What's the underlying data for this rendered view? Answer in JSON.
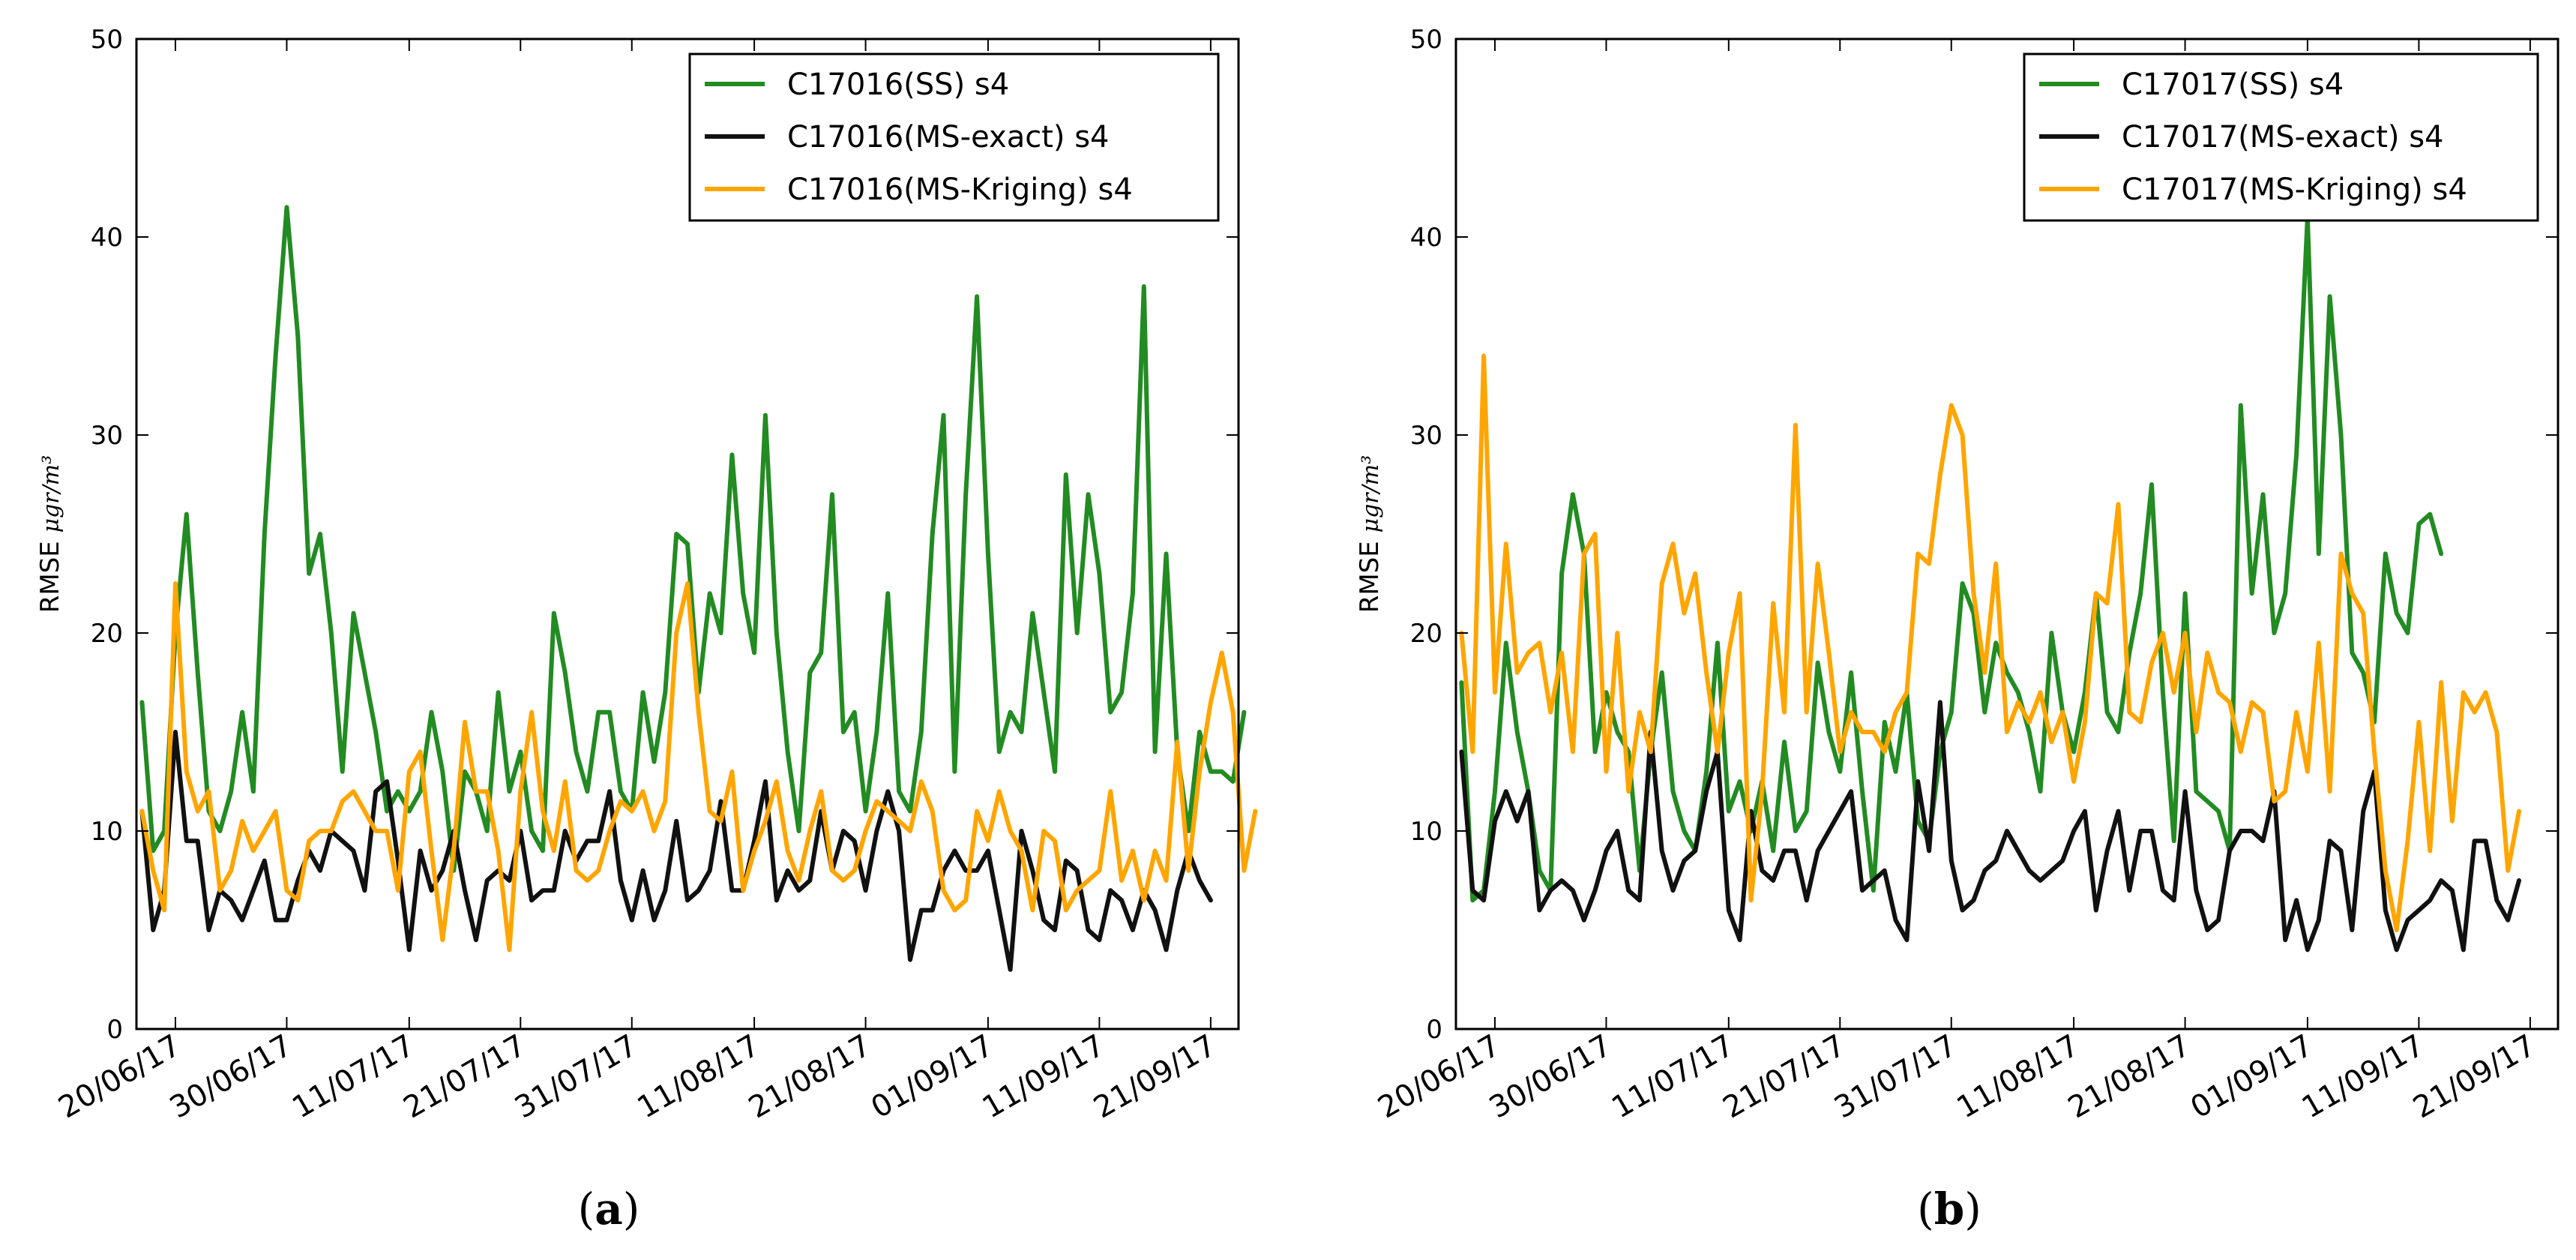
{
  "chart_data": [
    {
      "type": "line",
      "panel_label": "(a)",
      "panel_label_parts": [
        "(",
        "a",
        ")"
      ],
      "title": "",
      "xlabel": "",
      "ylabel": "RMSE",
      "ylabel_unit": "μgr/m³",
      "ylim": [
        0,
        50
      ],
      "yticks": [
        "0",
        "10",
        "20",
        "30",
        "40",
        "50"
      ],
      "xticks": [
        "20/06/17",
        "30/06/17",
        "11/07/17",
        "21/07/17",
        "31/07/17",
        "11/08/17",
        "21/08/17",
        "01/09/17",
        "11/09/17",
        "21/09/17"
      ],
      "xtick_day_index": [
        3,
        13,
        24,
        34,
        44,
        55,
        65,
        76,
        86,
        96
      ],
      "x_range_days": [
        -0.5,
        98.5
      ],
      "legend_position": "top-right",
      "series": [
        {
          "name": "C17016(SS) s4",
          "color": "#228B22",
          "values": [
            16.5,
            9,
            10,
            20,
            26,
            18,
            11,
            10,
            12,
            16,
            12,
            25,
            34,
            41.5,
            35,
            23,
            25,
            20,
            13,
            21,
            18,
            15,
            11,
            12,
            11,
            12,
            16,
            13,
            8,
            13,
            12,
            10,
            17,
            12,
            14,
            10,
            9,
            21,
            18,
            14,
            12,
            16,
            16,
            12,
            11,
            17,
            13.5,
            17,
            25,
            24.5,
            17,
            22,
            20,
            29,
            22,
            19,
            31,
            20,
            14,
            10,
            18,
            19,
            27,
            15,
            16,
            11,
            15,
            22,
            12,
            11,
            15,
            25,
            31,
            13,
            27,
            37,
            24,
            14,
            16,
            15,
            21,
            17,
            13,
            28,
            20,
            27,
            23,
            16,
            17,
            22,
            37.5,
            14,
            24,
            14,
            10,
            15,
            13,
            13,
            12.5,
            16
          ]
        },
        {
          "name": "C17016(MS-exact) s4",
          "color": "#111111",
          "values": [
            11,
            5,
            7,
            15,
            9.5,
            9.5,
            5,
            7,
            6.5,
            5.5,
            7,
            8.5,
            5.5,
            5.5,
            7.5,
            9,
            8,
            10,
            9.5,
            9,
            7,
            12,
            12.5,
            8.5,
            4,
            9,
            7,
            8,
            10,
            7,
            4.5,
            7.5,
            8,
            7.5,
            10,
            6.5,
            7,
            7,
            10,
            8.5,
            9.5,
            9.5,
            12,
            7.5,
            5.5,
            8,
            5.5,
            7,
            10.5,
            6.5,
            7,
            8,
            11.5,
            7,
            7,
            9.5,
            12.5,
            6.5,
            8,
            7,
            7.5,
            11,
            8,
            10,
            9.5,
            7,
            10,
            12,
            10,
            3.5,
            6,
            6,
            8,
            9,
            8,
            8,
            9,
            6,
            3,
            10,
            8,
            5.5,
            5,
            8.5,
            8,
            5,
            4.5,
            7,
            6.5,
            5,
            7,
            6,
            4,
            7,
            9,
            7.5,
            6.5
          ]
        },
        {
          "name": "C17016(MS-Kriging) s4",
          "color": "#FFA500",
          "values": [
            11,
            8,
            6,
            22.5,
            13,
            11,
            12,
            7,
            8,
            10.5,
            9,
            10,
            11,
            7,
            6.5,
            9.5,
            10,
            10,
            11.5,
            12,
            11,
            10,
            10,
            7,
            13,
            14,
            9,
            4.5,
            9,
            15.5,
            12,
            12,
            9,
            4,
            12,
            16,
            11,
            9,
            12.5,
            8,
            7.5,
            8,
            10,
            11.5,
            11,
            12,
            10,
            11.5,
            20,
            22.5,
            16,
            11,
            10.5,
            13,
            7,
            9,
            10.5,
            12.5,
            9,
            7.5,
            10,
            12,
            8,
            7.5,
            8,
            10,
            11.5,
            11,
            10.5,
            10,
            12.5,
            11,
            7,
            6,
            6.5,
            11,
            9.5,
            12,
            10,
            9,
            6,
            10,
            9.5,
            6,
            7,
            7.5,
            8,
            12,
            7.5,
            9,
            6.5,
            9,
            7.5,
            14.5,
            8,
            13,
            16.5,
            19,
            16,
            8,
            11
          ]
        }
      ]
    },
    {
      "type": "line",
      "panel_label": "(b)",
      "panel_label_parts": [
        "(",
        "b",
        ")"
      ],
      "title": "",
      "xlabel": "",
      "ylabel": "RMSE",
      "ylabel_unit": "μgr/m³",
      "ylim": [
        0,
        50
      ],
      "yticks": [
        "0",
        "10",
        "20",
        "30",
        "40",
        "50"
      ],
      "xticks": [
        "20/06/17",
        "30/06/17",
        "11/07/17",
        "21/07/17",
        "31/07/17",
        "11/08/17",
        "21/08/17",
        "01/09/17",
        "11/09/17",
        "21/09/17"
      ],
      "xtick_day_index": [
        3,
        13,
        24,
        34,
        44,
        55,
        65,
        76,
        86,
        96
      ],
      "x_range_days": [
        -0.5,
        98.5
      ],
      "legend_position": "top-right",
      "series": [
        {
          "name": "C17017(SS) s4",
          "color": "#228B22",
          "values": [
            17.5,
            6.5,
            7,
            12,
            19.5,
            15,
            12,
            8,
            7,
            23,
            27,
            24,
            14,
            17,
            15,
            14,
            8,
            14,
            18,
            12,
            10,
            9,
            13,
            19.5,
            11,
            12.5,
            10,
            12.5,
            9,
            14.5,
            10,
            11,
            18.5,
            15,
            13,
            18,
            12,
            7,
            15.5,
            13,
            17,
            10.5,
            9.5,
            14,
            16,
            22.5,
            21,
            16,
            19.5,
            18,
            17,
            15,
            12,
            20,
            16,
            14,
            17,
            22,
            16,
            15,
            19,
            22,
            27.5,
            17,
            9.5,
            22,
            12,
            11.5,
            11,
            9,
            31.5,
            22,
            27,
            20,
            22,
            29,
            41,
            24,
            37,
            30,
            19,
            18,
            15.5,
            24,
            21,
            20,
            25.5,
            26,
            24
          ]
        },
        {
          "name": "C17017(MS-exact) s4",
          "color": "#111111",
          "values": [
            14,
            7,
            6.5,
            10.5,
            12,
            10.5,
            12,
            6,
            7,
            7.5,
            7,
            5.5,
            7,
            9,
            10,
            7,
            6.5,
            15,
            9,
            7,
            8.5,
            9,
            12,
            14,
            6,
            4.5,
            11,
            8,
            7.5,
            9,
            9,
            6.5,
            9,
            10,
            11,
            12,
            7,
            7.5,
            8,
            5.5,
            4.5,
            12.5,
            9,
            16.5,
            8.5,
            6,
            6.5,
            8,
            8.5,
            10,
            9,
            8,
            7.5,
            8,
            8.5,
            10,
            11,
            6,
            9,
            11,
            7,
            10,
            10,
            7,
            6.5,
            12,
            7,
            5,
            5.5,
            9,
            10,
            10,
            9.5,
            12,
            4.5,
            6.5,
            4,
            5.5,
            9.5,
            9,
            5,
            11,
            13,
            6,
            4,
            5.5,
            6,
            6.5,
            7.5,
            7,
            4,
            9.5,
            9.5,
            6.5,
            5.5,
            7.5
          ]
        },
        {
          "name": "C17017(MS-Kriging) s4",
          "color": "#FFA500",
          "values": [
            20,
            14,
            34,
            17,
            24.5,
            18,
            19,
            19.5,
            16,
            19,
            14,
            24,
            25,
            13,
            20,
            12,
            16,
            14,
            22.5,
            24.5,
            21,
            23,
            18,
            14,
            19,
            22,
            6.5,
            12,
            21.5,
            16,
            30.5,
            16,
            23.5,
            19,
            14,
            16,
            15,
            15,
            14,
            16,
            17,
            24,
            23.5,
            28,
            31.5,
            30,
            22,
            18,
            23.5,
            15,
            16.5,
            15.5,
            17,
            14.5,
            16,
            12.5,
            15.5,
            22,
            21.5,
            26.5,
            16,
            15.5,
            18.5,
            20,
            17,
            20,
            15,
            19,
            17,
            16.5,
            14,
            16.5,
            16,
            11.5,
            12,
            16,
            13,
            19.5,
            12,
            24,
            22,
            21,
            14,
            8,
            5,
            9.5,
            15.5,
            9,
            17.5,
            10.5,
            17,
            16,
            17,
            15,
            8,
            11
          ]
        }
      ]
    }
  ]
}
